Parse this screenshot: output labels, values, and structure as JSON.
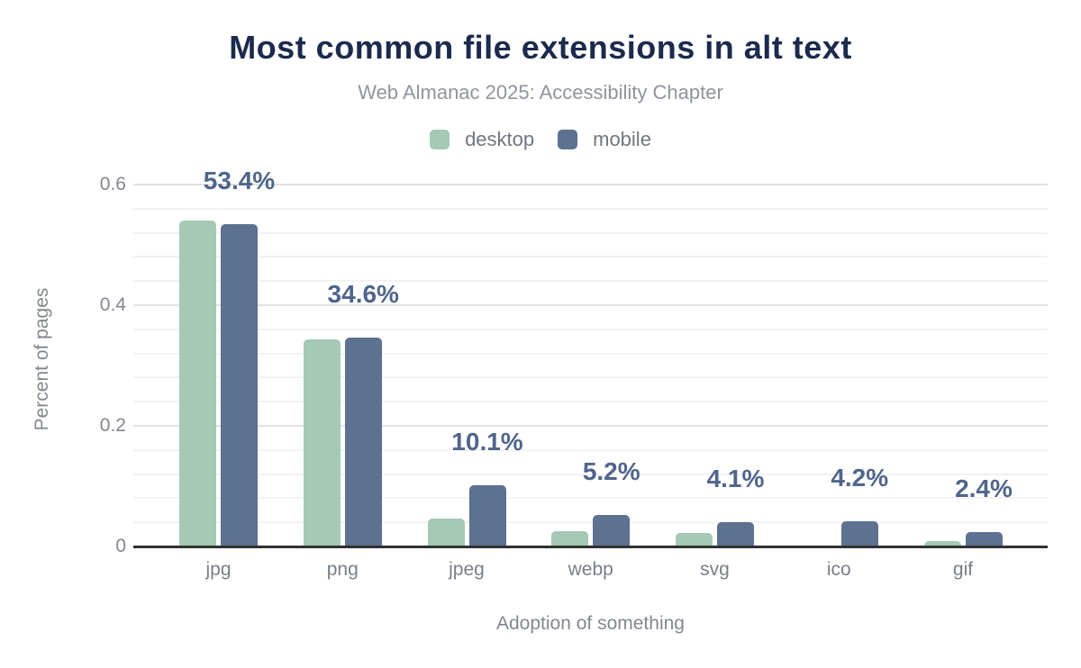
{
  "title": "Most common file extensions in alt text",
  "subtitle": "Web Almanac 2025: Accessibility Chapter",
  "legend": {
    "items": [
      {
        "label": "desktop",
        "color": "#a5c9b4"
      },
      {
        "label": "mobile",
        "color": "#5d7190"
      }
    ]
  },
  "chart_data": {
    "type": "bar",
    "title": "Most common file extensions in alt text",
    "subtitle": "Web Almanac 2025: Accessibility Chapter",
    "categories": [
      "jpg",
      "png",
      "jpeg",
      "webp",
      "svg",
      "ico",
      "gif"
    ],
    "series": [
      {
        "name": "desktop",
        "color": "#a5c9b4",
        "values": [
          0.54,
          0.343,
          0.047,
          0.025,
          0.023,
          0.0,
          0.009
        ]
      },
      {
        "name": "mobile",
        "color": "#5d7190",
        "values": [
          0.534,
          0.346,
          0.101,
          0.052,
          0.041,
          0.042,
          0.024
        ]
      }
    ],
    "data_labels": [
      "53.4%",
      "34.6%",
      "10.1%",
      "5.2%",
      "4.1%",
      "4.2%",
      "2.4%"
    ],
    "data_labels_series": "mobile",
    "xlabel": "Adoption of something",
    "ylabel": "Percent of pages",
    "ylim": [
      0,
      0.625
    ],
    "yticks": [
      {
        "value": 0,
        "label": "0"
      },
      {
        "value": 0.2,
        "label": "0.2"
      },
      {
        "value": 0.4,
        "label": "0.4"
      },
      {
        "value": 0.6,
        "label": "0.6"
      }
    ],
    "grid": {
      "orientation": "horizontal",
      "minor_step": 0.04,
      "major_step": 0.2
    },
    "legend_position": "top"
  },
  "colors": {
    "background": "#ffffff",
    "title_text": "#1b2a4d",
    "subtitle_text": "#8f959c",
    "legend_text": "#717680",
    "value_label_text": "#50658b",
    "axis_text": "#82878f",
    "category_text": "#787e88",
    "axis_line": "#313131",
    "gridline_major": "#e2e2e2",
    "gridline_minor": "#f2f2f2"
  }
}
